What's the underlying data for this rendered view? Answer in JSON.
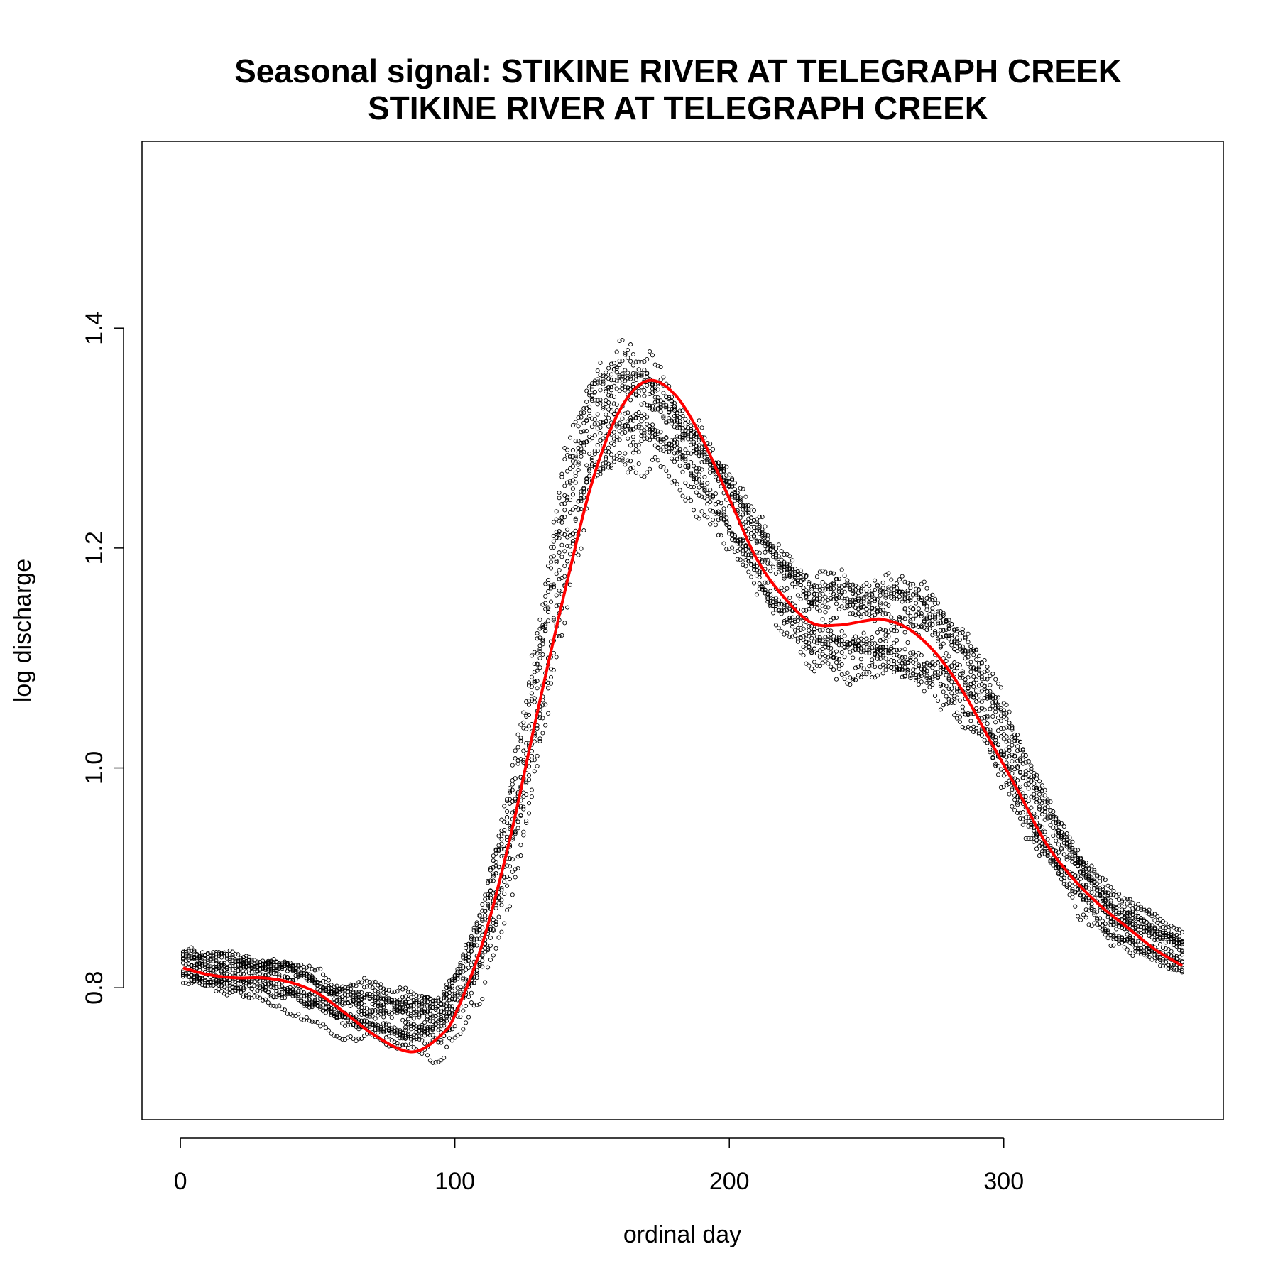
{
  "chart_data": {
    "type": "scatter",
    "title": "Seasonal signal: STIKINE RIVER AT TELEGRAPH CREEK",
    "subtitle": "STIKINE RIVER AT TELEGRAPH CREEK",
    "xlabel": "ordinal day",
    "ylabel": "log discharge",
    "xlim": [
      -14,
      380
    ],
    "ylim": [
      0.68,
      1.57
    ],
    "xticks": [
      0,
      100,
      200,
      300
    ],
    "xtick_labels": [
      "0",
      "100",
      "200",
      "300"
    ],
    "yticks": [
      0.8,
      1.0,
      1.2,
      1.4
    ],
    "ytick_labels": [
      "0.8",
      "1.0",
      "1.2",
      "1.4"
    ],
    "grid": false,
    "point_style": "open circle, black",
    "smooth_color": "#ff0000",
    "points_description_note": "",
    "series": [
      {
        "kind": "smooth",
        "x": [
          1,
          10,
          20,
          30,
          40,
          50,
          60,
          70,
          80,
          87,
          95,
          100,
          110,
          120,
          130,
          140,
          150,
          160,
          170,
          180,
          190,
          200,
          210,
          220,
          230,
          240,
          250,
          256,
          265,
          275,
          285,
          295,
          305,
          315,
          325,
          335,
          345,
          355,
          365
        ],
        "y": [
          0.818,
          0.812,
          0.809,
          0.809,
          0.805,
          0.795,
          0.777,
          0.758,
          0.744,
          0.743,
          0.757,
          0.775,
          0.84,
          0.935,
          1.05,
          1.16,
          1.26,
          1.325,
          1.352,
          1.34,
          1.3,
          1.245,
          1.19,
          1.155,
          1.132,
          1.13,
          1.134,
          1.135,
          1.127,
          1.105,
          1.07,
          1.025,
          0.98,
          0.933,
          0.9,
          0.875,
          0.855,
          0.835,
          0.82
        ]
      },
      {
        "kind": "scatter",
        "envelope": {
          "x": [
            1,
            20,
            40,
            60,
            80,
            95,
            110,
            125,
            140,
            150,
            160,
            170,
            180,
            190,
            200,
            215,
            230,
            245,
            260,
            275,
            290,
            305,
            320,
            340,
            365
          ],
          "center": [
            0.818,
            0.81,
            0.802,
            0.778,
            0.765,
            0.765,
            0.835,
            0.98,
            1.2,
            1.3,
            1.32,
            1.32,
            1.3,
            1.27,
            1.23,
            1.17,
            1.13,
            1.12,
            1.12,
            1.11,
            1.07,
            0.99,
            0.92,
            0.86,
            0.83
          ],
          "spread": [
            0.03,
            0.04,
            0.04,
            0.045,
            0.05,
            0.05,
            0.07,
            0.11,
            0.12,
            0.09,
            0.1,
            0.1,
            0.07,
            0.07,
            0.07,
            0.07,
            0.08,
            0.09,
            0.09,
            0.08,
            0.08,
            0.07,
            0.06,
            0.045,
            0.035
          ]
        }
      }
    ]
  }
}
